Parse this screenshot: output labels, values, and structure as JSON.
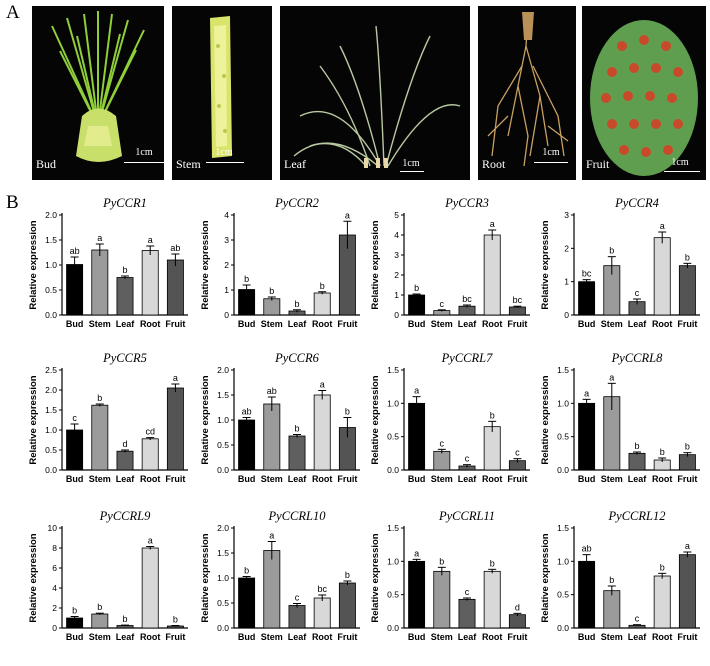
{
  "panel_a": {
    "letter": "A",
    "photos": [
      {
        "label": "Bud",
        "scale": "1cm"
      },
      {
        "label": "Stem",
        "scale": "1cm"
      },
      {
        "label": "Leaf",
        "scale": "1cm"
      },
      {
        "label": "Root",
        "scale": "1cm"
      },
      {
        "label": "Fruit",
        "scale": "1cm"
      }
    ]
  },
  "panel_b": {
    "letter": "B"
  },
  "colors": {
    "bars": [
      "#000000",
      "#9b9b9b",
      "#5f5f5f",
      "#d8d8d8",
      "#545454"
    ],
    "axis": "#000000"
  },
  "chart_data": [
    {
      "type": "bar",
      "title": "PyCCR1",
      "ylabel": "Relative expression",
      "categories": [
        "Bud",
        "Stem",
        "Leaf",
        "Root",
        "Fruit"
      ],
      "values": [
        1.01,
        1.3,
        0.75,
        1.29,
        1.1
      ],
      "errors": [
        0.15,
        0.12,
        0.03,
        0.09,
        0.12
      ],
      "letters": [
        "ab",
        "a",
        "b",
        "a",
        "ab"
      ],
      "ylim": [
        0,
        2.0
      ],
      "yticks": [
        "0.0",
        "0.5",
        "1.0",
        "1.5",
        "2.0"
      ]
    },
    {
      "type": "bar",
      "title": "PyCCR2",
      "ylabel": "Relative expression",
      "categories": [
        "Bud",
        "Stem",
        "Leaf",
        "Root",
        "Fruit"
      ],
      "values": [
        1.02,
        0.65,
        0.16,
        0.88,
        3.2
      ],
      "errors": [
        0.18,
        0.07,
        0.05,
        0.05,
        0.55
      ],
      "letters": [
        "b",
        "b",
        "b",
        "b",
        "a"
      ],
      "ylim": [
        0,
        4
      ],
      "yticks": [
        "0",
        "1",
        "2",
        "3",
        "4"
      ]
    },
    {
      "type": "bar",
      "title": "PyCCR3",
      "ylabel": "Relative expression",
      "categories": [
        "Bud",
        "Stem",
        "Leaf",
        "Root",
        "Fruit"
      ],
      "values": [
        1.0,
        0.22,
        0.44,
        4.0,
        0.4
      ],
      "errors": [
        0.05,
        0.04,
        0.06,
        0.25,
        0.04
      ],
      "letters": [
        "b",
        "c",
        "bc",
        "a",
        "bc"
      ],
      "ylim": [
        0,
        5
      ],
      "yticks": [
        "0",
        "1",
        "2",
        "3",
        "4",
        "5"
      ]
    },
    {
      "type": "bar",
      "title": "PyCCR4",
      "ylabel": "Relative expression",
      "categories": [
        "Bud",
        "Stem",
        "Leaf",
        "Root",
        "Fruit"
      ],
      "values": [
        1.0,
        1.48,
        0.4,
        2.32,
        1.48
      ],
      "errors": [
        0.06,
        0.27,
        0.08,
        0.17,
        0.07
      ],
      "letters": [
        "bc",
        "b",
        "c",
        "a",
        "b"
      ],
      "ylim": [
        0,
        3
      ],
      "yticks": [
        "0",
        "1",
        "2",
        "3"
      ]
    },
    {
      "type": "bar",
      "title": "PyCCR5",
      "ylabel": "Relative expression",
      "categories": [
        "Bud",
        "Stem",
        "Leaf",
        "Root",
        "Fruit"
      ],
      "values": [
        1.0,
        1.62,
        0.47,
        0.78,
        2.05
      ],
      "errors": [
        0.15,
        0.03,
        0.03,
        0.03,
        0.1
      ],
      "letters": [
        "c",
        "b",
        "d",
        "cd",
        "a"
      ],
      "ylim": [
        0,
        2.5
      ],
      "yticks": [
        "0.0",
        "0.5",
        "1.0",
        "1.5",
        "2.0",
        "2.5"
      ]
    },
    {
      "type": "bar",
      "title": "PyCCR6",
      "ylabel": "Relative expression",
      "categories": [
        "Bud",
        "Stem",
        "Leaf",
        "Root",
        "Fruit"
      ],
      "values": [
        1.0,
        1.32,
        0.68,
        1.5,
        0.85
      ],
      "errors": [
        0.05,
        0.14,
        0.03,
        0.09,
        0.2
      ],
      "letters": [
        "ab",
        "ab",
        "b",
        "a",
        "b"
      ],
      "ylim": [
        0,
        2.0
      ],
      "yticks": [
        "0.0",
        "0.5",
        "1.0",
        "1.5",
        "2.0"
      ]
    },
    {
      "type": "bar",
      "title": "PyCCRL7",
      "ylabel": "Relative expression",
      "categories": [
        "Bud",
        "Stem",
        "Leaf",
        "Root",
        "Fruit"
      ],
      "values": [
        1.0,
        0.28,
        0.06,
        0.65,
        0.14
      ],
      "errors": [
        0.1,
        0.03,
        0.02,
        0.08,
        0.03
      ],
      "letters": [
        "a",
        "c",
        "c",
        "b",
        "c"
      ],
      "ylim": [
        0,
        1.5
      ],
      "yticks": [
        "0.0",
        "0.5",
        "1.0",
        "1.5"
      ]
    },
    {
      "type": "bar",
      "title": "PyCCRL8",
      "ylabel": "Relative expression",
      "categories": [
        "Bud",
        "Stem",
        "Leaf",
        "Root",
        "Fruit"
      ],
      "values": [
        1.0,
        1.1,
        0.25,
        0.15,
        0.23
      ],
      "errors": [
        0.06,
        0.2,
        0.02,
        0.03,
        0.03
      ],
      "letters": [
        "a",
        "a",
        "b",
        "b",
        "b"
      ],
      "ylim": [
        0,
        1.5
      ],
      "yticks": [
        "0.0",
        "0.5",
        "1.0",
        "1.5"
      ]
    },
    {
      "type": "bar",
      "title": "PyCCRL9",
      "ylabel": "Relative expression",
      "categories": [
        "Bud",
        "Stem",
        "Leaf",
        "Root",
        "Fruit"
      ],
      "values": [
        1.0,
        1.4,
        0.25,
        8.0,
        0.2
      ],
      "errors": [
        0.15,
        0.08,
        0.04,
        0.15,
        0.05
      ],
      "letters": [
        "b",
        "b",
        "b",
        "a",
        "b"
      ],
      "ylim": [
        0,
        10
      ],
      "yticks": [
        "0",
        "2",
        "4",
        "6",
        "8",
        "10"
      ]
    },
    {
      "type": "bar",
      "title": "PyCCRL10",
      "ylabel": "Relative expression",
      "categories": [
        "Bud",
        "Stem",
        "Leaf",
        "Root",
        "Fruit"
      ],
      "values": [
        1.0,
        1.55,
        0.45,
        0.6,
        0.9
      ],
      "errors": [
        0.03,
        0.18,
        0.04,
        0.06,
        0.04
      ],
      "letters": [
        "b",
        "a",
        "c",
        "bc",
        "b"
      ],
      "ylim": [
        0,
        2.0
      ],
      "yticks": [
        "0.0",
        "0.5",
        "1.0",
        "1.5",
        "2.0"
      ]
    },
    {
      "type": "bar",
      "title": "PyCCRL11",
      "ylabel": "Relative expression",
      "categories": [
        "Bud",
        "Stem",
        "Leaf",
        "Root",
        "Fruit"
      ],
      "values": [
        1.0,
        0.85,
        0.43,
        0.85,
        0.2
      ],
      "errors": [
        0.03,
        0.06,
        0.02,
        0.03,
        0.02
      ],
      "letters": [
        "a",
        "b",
        "c",
        "b",
        "d"
      ],
      "ylim": [
        0,
        1.5
      ],
      "yticks": [
        "0.0",
        "0.5",
        "1.0",
        "1.5"
      ]
    },
    {
      "type": "bar",
      "title": "PyCCRL12",
      "ylabel": "Relative expression",
      "categories": [
        "Bud",
        "Stem",
        "Leaf",
        "Root",
        "Fruit"
      ],
      "values": [
        1.0,
        0.56,
        0.04,
        0.78,
        1.1
      ],
      "errors": [
        0.1,
        0.07,
        0.01,
        0.04,
        0.04
      ],
      "letters": [
        "ab",
        "b",
        "c",
        "b",
        "a"
      ],
      "ylim": [
        0,
        1.5
      ],
      "yticks": [
        "0.0",
        "0.5",
        "1.0",
        "1.5"
      ]
    }
  ]
}
